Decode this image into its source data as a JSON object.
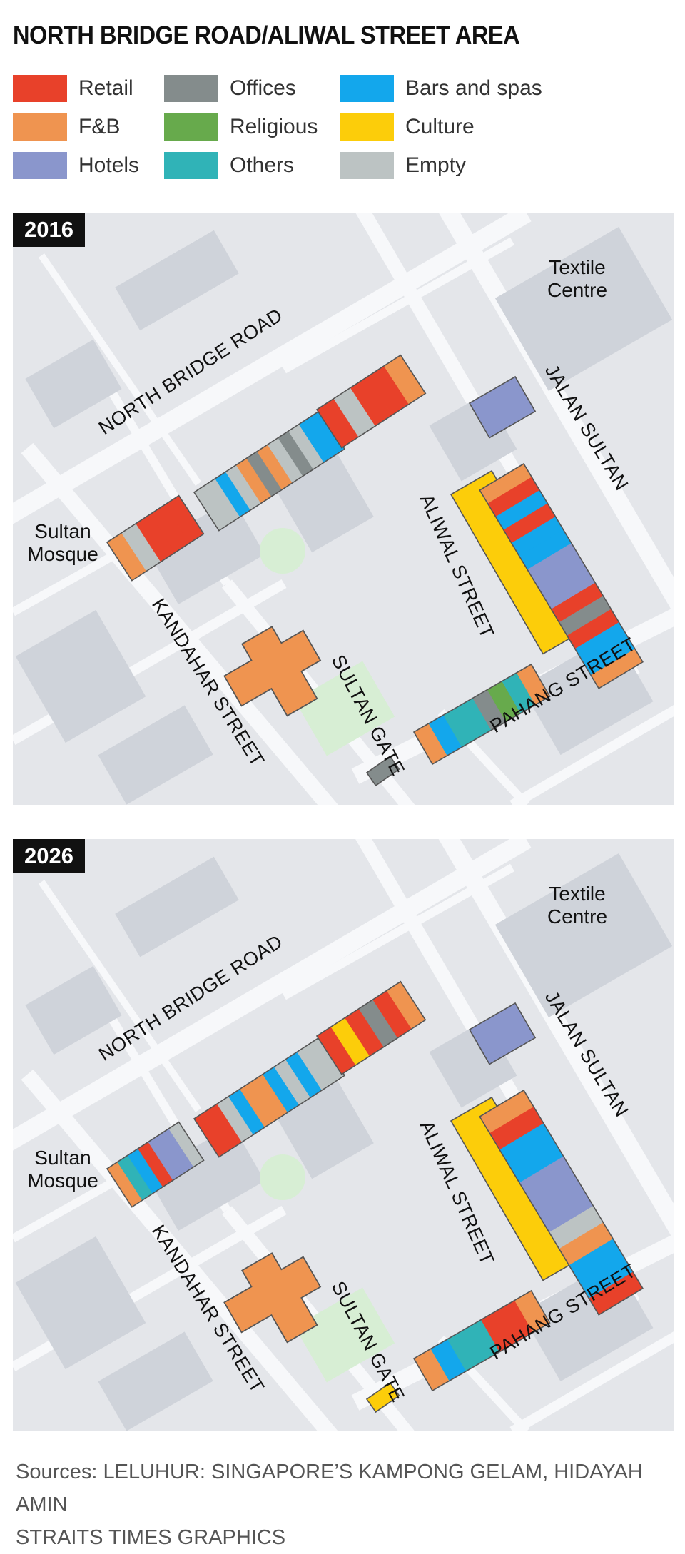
{
  "title": "NORTH BRIDGE ROAD/ALIWAL STREET AREA",
  "colors": {
    "retail": "#e8412a",
    "fnb": "#ef9450",
    "hotels": "#8a96cc",
    "offices": "#848c8c",
    "religious": "#67aa4c",
    "others": "#30b3b7",
    "bars": "#13a7ec",
    "culture": "#fccd0a",
    "empty": "#bcc3c3"
  },
  "legend": [
    {
      "key": "retail",
      "label": "Retail",
      "color": "#e8412a"
    },
    {
      "key": "offices",
      "label": "Offices",
      "color": "#848c8c"
    },
    {
      "key": "bars",
      "label": "Bars and spas",
      "color": "#13a7ec"
    },
    {
      "key": "fnb",
      "label": "F&B",
      "color": "#ef9450"
    },
    {
      "key": "religious",
      "label": "Religious",
      "color": "#67aa4c"
    },
    {
      "key": "culture",
      "label": "Culture",
      "color": "#fccd0a"
    },
    {
      "key": "hotels",
      "label": "Hotels",
      "color": "#8a96cc"
    },
    {
      "key": "others",
      "label": "Others",
      "color": "#30b3b7"
    },
    {
      "key": "empty",
      "label": "Empty",
      "color": "#bcc3c3"
    }
  ],
  "streets": {
    "north_bridge": "NORTH BRIDGE ROAD",
    "jalan_sultan": "JALAN SULTAN",
    "aliwal": "ALIWAL STREET",
    "kandahar": "KANDAHAR STREET",
    "sultan_gate": "SULTAN GATE",
    "pahang": "PAHANG STREET"
  },
  "places": {
    "textile_1": "Textile",
    "textile_2": "Centre",
    "mosque_1": "Sultan",
    "mosque_2": "Mosque"
  },
  "maps": [
    {
      "year": "2016",
      "blocks": {
        "nb_left": [
          "fnb",
          "empty",
          "retail",
          "retail",
          "retail"
        ],
        "nb_mid": [
          "empty",
          "empty",
          "bars",
          "empty",
          "fnb",
          "offices",
          "fnb",
          "empty",
          "offices",
          "empty",
          "bars",
          "bars"
        ],
        "nb_right": [
          "retail",
          "empty",
          "retail",
          "retail",
          "fnb"
        ],
        "aliwal_top": [
          "hotels"
        ],
        "aliwal_main": [
          "culture"
        ],
        "jalan": [
          "fnb",
          "retail",
          "bars",
          "retail",
          "bars",
          "bars",
          "hotels",
          "hotels",
          "hotels",
          "retail",
          "offices",
          "retail",
          "bars",
          "bars",
          "fnb"
        ],
        "pahang": [
          "fnb",
          "bars",
          "others",
          "others",
          "offices",
          "religious",
          "others",
          "fnb"
        ],
        "sg_small": [
          "offices"
        ]
      }
    },
    {
      "year": "2026",
      "blocks": {
        "nb_left": [
          "fnb",
          "others",
          "bars",
          "retail",
          "hotels",
          "hotels",
          "empty"
        ],
        "nb_mid": [
          "retail",
          "retail",
          "empty",
          "bars",
          "fnb",
          "fnb",
          "bars",
          "empty",
          "bars",
          "empty",
          "empty"
        ],
        "nb_right": [
          "retail",
          "culture",
          "retail",
          "offices",
          "retail",
          "fnb"
        ],
        "aliwal_top": [
          "hotels"
        ],
        "aliwal_main": [
          "culture"
        ],
        "jalan": [
          "fnb",
          "retail",
          "bars",
          "bars",
          "hotels",
          "hotels",
          "hotels",
          "empty",
          "fnb",
          "bars",
          "bars",
          "retail"
        ],
        "pahang": [
          "fnb",
          "bars",
          "others",
          "others",
          "retail",
          "retail",
          "fnb"
        ],
        "sg_small": [
          "culture"
        ]
      }
    }
  ],
  "sources": {
    "line1": "Sources: LELUHUR: SINGAPORE’S KAMPONG GELAM, HIDAYAH AMIN",
    "line2": "STRAITS TIMES GRAPHICS"
  }
}
